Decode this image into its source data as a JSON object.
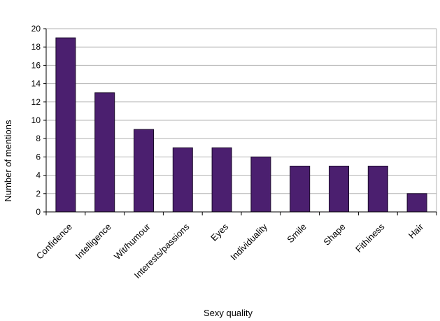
{
  "chart_data": {
    "type": "bar",
    "title": "",
    "xlabel": "Sexy quality",
    "ylabel": "Number of mentions",
    "categories": [
      "Confidence",
      "Intelligence",
      "Wit/humour",
      "Interests/passions",
      "Eyes",
      "Individuality",
      "Smile",
      "Shape",
      "Fithiness",
      "Hair"
    ],
    "values": [
      19,
      13,
      9,
      7,
      7,
      6,
      5,
      5,
      5,
      2
    ],
    "ylim": [
      0,
      20
    ],
    "yticks": [
      0,
      2,
      4,
      6,
      8,
      10,
      12,
      14,
      16,
      18,
      20
    ],
    "grid": true,
    "legend": "none",
    "colors": {
      "bar": "#4b1f6f",
      "bar_edge": "#1a0a2a",
      "grid": "#b3b3b3",
      "axis": "#000000"
    }
  }
}
